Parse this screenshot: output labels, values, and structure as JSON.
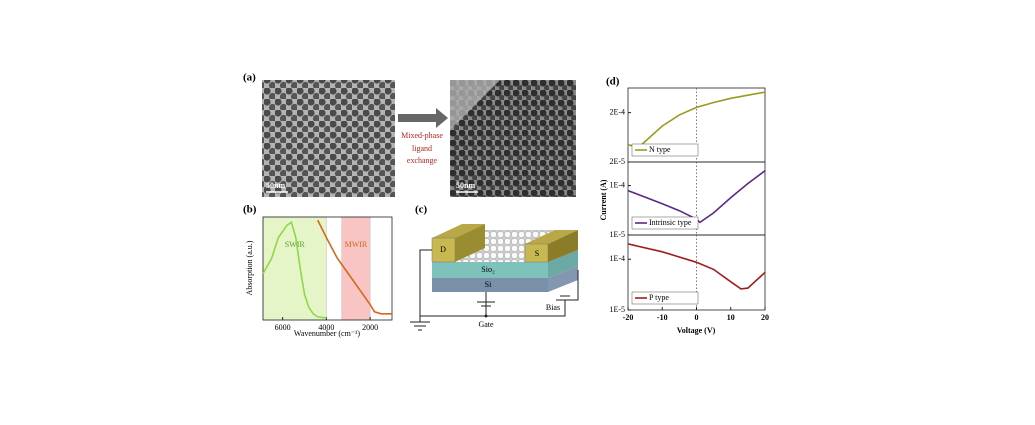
{
  "figure": {
    "a": {
      "label": "(a)",
      "scale_bar_left": "50nm",
      "scale_bar_right": "50nm",
      "arrow_text": [
        "Mixed-phase",
        "ligand",
        "exchange"
      ]
    },
    "c": {
      "label": "(c)",
      "drain": "D",
      "source": "S",
      "oxide": "Sio₂",
      "substrate": "Si",
      "bias": "Bias",
      "gate": "Gate"
    }
  },
  "chart_data": [
    {
      "type": "line",
      "panel_label": "(b)",
      "x_label": "Wavenumber (cm⁻¹)",
      "y_label": "Absorption (a.u.)",
      "xlim": [
        6900,
        1000
      ],
      "xticks": [
        6000,
        4000,
        2000
      ],
      "ylim": [
        0,
        1
      ],
      "spans": [
        {
          "label": "SWIR",
          "from": 6900,
          "to": 4000,
          "color": "#e6f5c8",
          "label_color": "#5aa02c"
        },
        {
          "label": "MWIR",
          "from": 3300,
          "to": 2000,
          "color": "#f8c4c4",
          "label_color": "#d2691e"
        }
      ],
      "series": [
        {
          "color": "#8ed84a",
          "x": [
            6900,
            6500,
            6200,
            5800,
            5600,
            5400,
            5200,
            5000,
            4800,
            4600,
            4400,
            4000
          ],
          "values": [
            0.45,
            0.6,
            0.8,
            0.92,
            0.95,
            0.8,
            0.5,
            0.25,
            0.12,
            0.06,
            0.03,
            0.02
          ]
        },
        {
          "color": "#d2691e",
          "x": [
            4400,
            4000,
            3500,
            3000,
            2500,
            2000,
            1800,
            1500,
            1000
          ],
          "values": [
            0.97,
            0.8,
            0.6,
            0.45,
            0.3,
            0.15,
            0.08,
            0.06,
            0.06
          ]
        }
      ]
    },
    {
      "type": "line",
      "panel_label": "(d)",
      "log_scale": true,
      "xlim": [
        -20,
        20
      ],
      "vline": 0,
      "ylim": [
        2e-05,
        0.00063
      ],
      "yticks": [
        {
          "value": 0.0002,
          "label": "2E-4"
        },
        {
          "value": 2e-05,
          "label": "2E-5"
        }
      ],
      "series": [
        {
          "name": "N type",
          "color": "#9a9a1e",
          "x": [
            -20,
            -17,
            -15,
            -10,
            -5,
            0,
            5,
            10,
            15,
            20
          ],
          "values": [
            4.5e-05,
            3.9e-05,
            5.2e-05,
            0.000107,
            0.00018,
            0.000255,
            0.00032,
            0.00039,
            0.00045,
            0.00052
          ]
        }
      ]
    },
    {
      "type": "line",
      "y_label": "Current (A)",
      "log_scale": true,
      "xlim": [
        -20,
        20
      ],
      "vline": 0,
      "ylim": [
        1e-05,
        0.0003
      ],
      "yticks": [
        {
          "value": 0.0001,
          "label": "1E-4"
        },
        {
          "value": 1e-05,
          "label": "1E-5"
        }
      ],
      "series": [
        {
          "name": "Intrinsic type",
          "color": "#5b2a86",
          "x": [
            -20,
            -10,
            -5,
            0,
            1,
            5,
            10,
            15,
            20
          ],
          "values": [
            7.9e-05,
            4.3e-05,
            3.1e-05,
            2.1e-05,
            1.8e-05,
            2.8e-05,
            5.7e-05,
            0.00011,
            0.0002
          ]
        }
      ]
    },
    {
      "type": "line",
      "x_label": "Voltage (V)",
      "log_scale": true,
      "xlim": [
        -20,
        20
      ],
      "vline": 0,
      "xticks": [
        -20,
        -10,
        0,
        10,
        20
      ],
      "ylim": [
        1e-05,
        0.0003
      ],
      "yticks": [
        {
          "value": 0.0001,
          "label": "1E-4"
        },
        {
          "value": 1e-05,
          "label": "1E-5"
        }
      ],
      "series": [
        {
          "name": "P type",
          "color": "#a01e1e",
          "x": [
            -20,
            -10,
            0,
            5,
            10,
            13,
            15,
            20
          ],
          "values": [
            0.0002,
            0.00014,
            8.7e-05,
            6.3e-05,
            3.6e-05,
            2.6e-05,
            2.7e-05,
            5.5e-05
          ]
        }
      ]
    }
  ]
}
